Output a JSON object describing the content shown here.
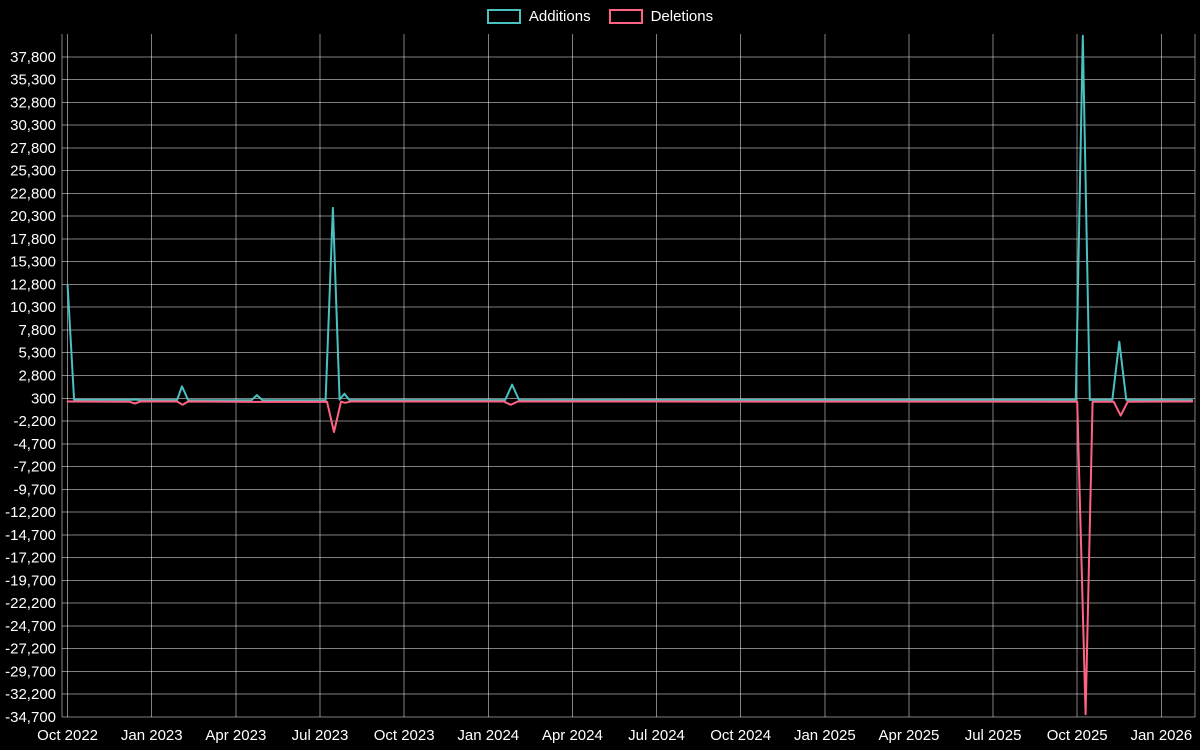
{
  "chart_data": {
    "type": "line",
    "title": "",
    "xlabel": "",
    "ylabel": "",
    "background": "#000000",
    "grid": true,
    "legend_position": "top-center",
    "xlim": [
      -0.2,
      40.2
    ],
    "ylim": [
      -34700,
      40300
    ],
    "x_unit": "months since Oct 2022",
    "x_ticks": [
      {
        "m": 0,
        "label": "Oct 2022"
      },
      {
        "m": 3,
        "label": "Jan 2023"
      },
      {
        "m": 6,
        "label": "Apr 2023"
      },
      {
        "m": 9,
        "label": "Jul 2023"
      },
      {
        "m": 12,
        "label": "Oct 2023"
      },
      {
        "m": 15,
        "label": "Jan 2024"
      },
      {
        "m": 18,
        "label": "Apr 2024"
      },
      {
        "m": 21,
        "label": "Jul 2024"
      },
      {
        "m": 24,
        "label": "Oct 2024"
      },
      {
        "m": 27,
        "label": "Jan 2025"
      },
      {
        "m": 30,
        "label": "Apr 2025"
      },
      {
        "m": 33,
        "label": "Jul 2025"
      },
      {
        "m": 36,
        "label": "Oct 2025"
      },
      {
        "m": 39,
        "label": "Jan 2026"
      }
    ],
    "y_ticks": [
      {
        "value": 37800,
        "label": "37,800"
      },
      {
        "value": 35300,
        "label": "35,300"
      },
      {
        "value": 32800,
        "label": "32,800"
      },
      {
        "value": 30300,
        "label": "30,300"
      },
      {
        "value": 27800,
        "label": "27,800"
      },
      {
        "value": 25300,
        "label": "25,300"
      },
      {
        "value": 22800,
        "label": "22,800"
      },
      {
        "value": 20300,
        "label": "20,300"
      },
      {
        "value": 17800,
        "label": "17,800"
      },
      {
        "value": 15300,
        "label": "15,300"
      },
      {
        "value": 12800,
        "label": "12,800"
      },
      {
        "value": 10300,
        "label": "10,300"
      },
      {
        "value": 7800,
        "label": "7,800"
      },
      {
        "value": 5300,
        "label": "5,300"
      },
      {
        "value": 2800,
        "label": "2,800"
      },
      {
        "value": 300,
        "label": "300"
      },
      {
        "value": -2200,
        "label": "-2,200"
      },
      {
        "value": -4700,
        "label": "-4,700"
      },
      {
        "value": -7200,
        "label": "-7,200"
      },
      {
        "value": -9700,
        "label": "-9,700"
      },
      {
        "value": -12200,
        "label": "-12,200"
      },
      {
        "value": -14700,
        "label": "-14,700"
      },
      {
        "value": -17200,
        "label": "-17,200"
      },
      {
        "value": -19700,
        "label": "-19,700"
      },
      {
        "value": -22200,
        "label": "-22,200"
      },
      {
        "value": -24700,
        "label": "-24,700"
      },
      {
        "value": -27200,
        "label": "-27,200"
      },
      {
        "value": -29700,
        "label": "-29,700"
      },
      {
        "value": -32200,
        "label": "-32,200"
      },
      {
        "value": -34700,
        "label": "-34,700"
      }
    ],
    "series": [
      {
        "name": "Additions",
        "color": "#4bc0c0",
        "points": [
          [
            0,
            12700
          ],
          [
            0.23,
            120
          ],
          [
            2.2,
            120
          ],
          [
            2.4,
            160
          ],
          [
            2.6,
            100
          ],
          [
            3.9,
            100
          ],
          [
            4.08,
            1600
          ],
          [
            4.3,
            100
          ],
          [
            6.55,
            90
          ],
          [
            6.75,
            650
          ],
          [
            6.95,
            90
          ],
          [
            9.2,
            100
          ],
          [
            9.46,
            21200
          ],
          [
            9.7,
            150
          ],
          [
            9.87,
            800
          ],
          [
            10.05,
            100
          ],
          [
            15.6,
            100
          ],
          [
            15.85,
            1800
          ],
          [
            16.1,
            100
          ],
          [
            35.95,
            120
          ],
          [
            36.2,
            40100
          ],
          [
            36.45,
            120
          ],
          [
            37.25,
            120
          ],
          [
            37.5,
            6500
          ],
          [
            37.75,
            120
          ],
          [
            40.1,
            100
          ]
        ]
      },
      {
        "name": "Deletions",
        "color": "#ff6384",
        "points": [
          [
            0,
            -60
          ],
          [
            2.2,
            -80
          ],
          [
            2.4,
            -280
          ],
          [
            2.6,
            -60
          ],
          [
            3.9,
            -60
          ],
          [
            4.1,
            -420
          ],
          [
            4.3,
            -60
          ],
          [
            6.75,
            -100
          ],
          [
            9.25,
            -80
          ],
          [
            9.5,
            -3400
          ],
          [
            9.75,
            -80
          ],
          [
            9.9,
            -200
          ],
          [
            10.1,
            -60
          ],
          [
            15.55,
            -60
          ],
          [
            15.8,
            -420
          ],
          [
            16.05,
            -60
          ],
          [
            36.0,
            -80
          ],
          [
            36.3,
            -34400
          ],
          [
            36.55,
            -80
          ],
          [
            37.3,
            -80
          ],
          [
            37.55,
            -1600
          ],
          [
            37.8,
            -80
          ],
          [
            40.1,
            -60
          ]
        ]
      }
    ]
  }
}
